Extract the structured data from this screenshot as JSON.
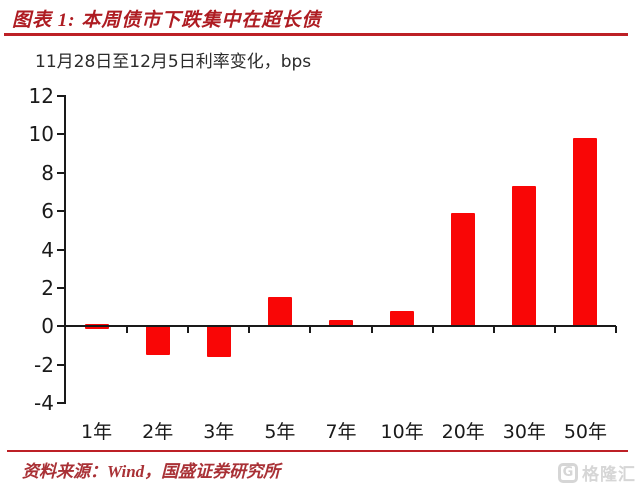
{
  "header": {
    "title": "图表 1:  本周债市下跌集中在超长债"
  },
  "chart_data": {
    "type": "bar",
    "title": "图表 1:  本周债市下跌集中在超长债",
    "subtitle": "11月28日至12月5日利率变化，bps",
    "unit": "bps",
    "categories": [
      "1年",
      "2年",
      "3年",
      "5年",
      "7年",
      "10年",
      "20年",
      "30年",
      "50年"
    ],
    "values": [
      -0.1,
      -1.5,
      -1.6,
      1.5,
      0.3,
      0.8,
      5.9,
      7.3,
      9.8
    ],
    "ylim": [
      -4,
      12
    ],
    "ytick_step": 2,
    "grid": false,
    "legend": false,
    "bar_color": "#f90606",
    "xlabel": "",
    "ylabel": ""
  },
  "footer": {
    "source": "资料来源：Wind，国盛证券研究所",
    "watermark_icon_letter": "G",
    "watermark_text": "格隆汇"
  },
  "colors": {
    "title_red": "#ae1c22",
    "rule_red": "#bd2026",
    "source_red": "#a93136",
    "bar_red": "#f90606",
    "axis_black": "#1a1a1a",
    "watermark_gray": "#d6d6d6"
  }
}
